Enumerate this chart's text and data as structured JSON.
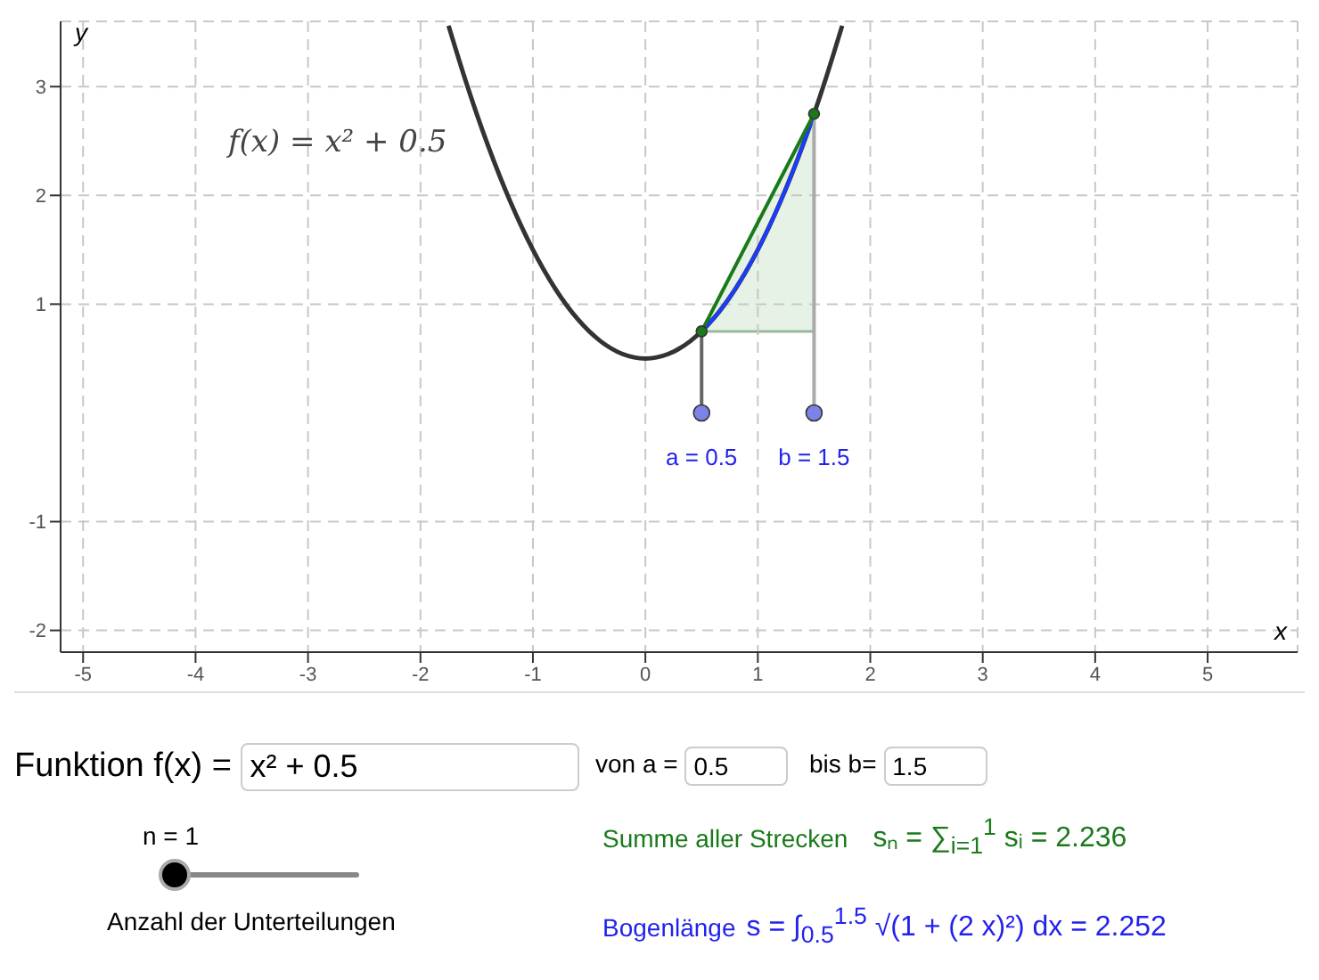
{
  "chart_data": {
    "type": "line",
    "xlabel": "x",
    "ylabel": "y",
    "xlim": [
      -5.2,
      5.8
    ],
    "ylim": [
      -2.2,
      3.6
    ],
    "xticks": [
      -5,
      -4,
      -3,
      -2,
      -1,
      0,
      1,
      2,
      3,
      4,
      5
    ],
    "yticks": [
      -2,
      -1,
      1,
      2,
      3
    ],
    "grid": true,
    "marker": "none",
    "series": [
      {
        "color": "#333333",
        "x": [
          -1.75,
          -1.6,
          -1.4,
          -1.2,
          -1.0,
          -0.8,
          -0.6,
          -0.4,
          -0.2,
          0,
          0.2,
          0.4,
          0.6,
          0.8,
          1.0,
          1.2,
          1.4,
          1.6,
          1.75
        ],
        "values": [
          3.56,
          3.06,
          2.46,
          1.94,
          1.5,
          1.14,
          0.86,
          0.66,
          0.54,
          0.5,
          0.54,
          0.66,
          0.86,
          1.14,
          1.5,
          1.94,
          2.46,
          3.06,
          3.56
        ]
      },
      {
        "color": "#666666",
        "x": [
          0.5,
          0.5
        ],
        "values": [
          0,
          0.75
        ]
      },
      {
        "color": "#aaaaaa",
        "x": [
          1.5,
          1.5
        ],
        "values": [
          0,
          2.75
        ]
      },
      {
        "color": "#1a3cff",
        "x": [
          0.5,
          0.6,
          0.7,
          0.8,
          0.9,
          1.0,
          1.1,
          1.2,
          1.3,
          1.4,
          1.5
        ],
        "values": [
          0.75,
          0.86,
          0.99,
          1.14,
          1.31,
          1.5,
          1.71,
          1.94,
          2.19,
          2.46,
          2.75
        ]
      },
      {
        "color": "#1a7a1a",
        "marker": "circle",
        "x": [
          0.5,
          1.5
        ],
        "values": [
          0.75,
          2.75
        ]
      },
      {
        "type": "scatter",
        "color": "#7b83e8",
        "marker": "circle",
        "x": [
          0.5,
          1.5
        ],
        "values": [
          0,
          0
        ]
      }
    ],
    "annotations": [
      "f(x) = x² + 0.5",
      {
        "text": "a = 0.5",
        "x": 0.5,
        "y": 0
      },
      {
        "text": "b = 1.5",
        "x": 1.5,
        "y": 0
      },
      "Funktion f(x) =",
      "x² + 0.5",
      "von a =",
      "0.5",
      "bis b=",
      "1.5",
      "n = 1",
      "Anzahl der Unterteilungen",
      "Summe aller Strecken",
      "sₙ = ∑$_{i=1}$$^{1}$ sᵢ = 2.236",
      "Bogenlänge",
      "s = ∫$_{0.5}$$^{1.5}$ √(1 + (2 x)²) dx = 2.252"
    ]
  }
}
